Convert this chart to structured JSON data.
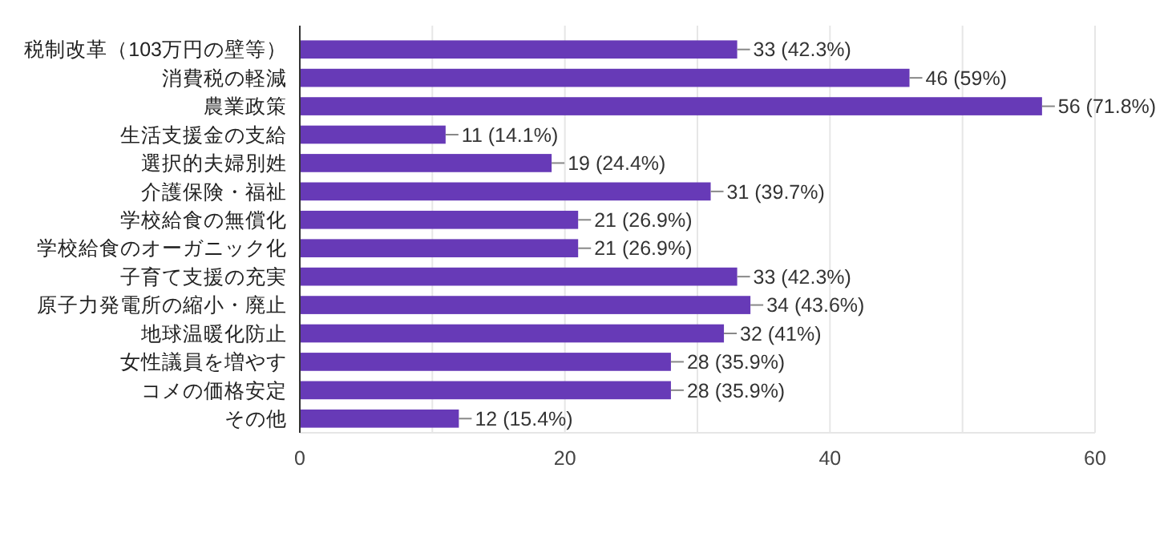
{
  "chart_data": {
    "type": "bar",
    "orientation": "horizontal",
    "categories": [
      "税制改革（103万円の壁等）",
      "消費税の軽減",
      "農業政策",
      "生活支援金の支給",
      "選択的夫婦別姓",
      "介護保険・福祉",
      "学校給食の無償化",
      "学校給食のオーガニック化",
      "子育て支援の充実",
      "原子力発電所の縮小・廃止",
      "地球温暖化防止",
      "女性議員を増やす",
      "コメの価格安定",
      "その他"
    ],
    "values": [
      33,
      46,
      56,
      11,
      19,
      31,
      21,
      21,
      33,
      34,
      32,
      28,
      28,
      12
    ],
    "value_labels": [
      "33 (42.3%)",
      "46 (59%)",
      "56 (71.8%)",
      "11 (14.1%)",
      "19 (24.4%)",
      "31 (39.7%)",
      "21 (26.9%)",
      "21 (26.9%)",
      "33 (42.3%)",
      "34 (43.6%)",
      "32 (41%)",
      "28 (35.9%)",
      "28 (35.9%)",
      "12 (15.4%)"
    ],
    "color": "#673ab7",
    "xlim": [
      0,
      60
    ],
    "xticks": [
      0,
      {
        "value": 10,
        "label": null
      },
      20,
      {
        "value": 30,
        "label": null
      },
      40,
      {
        "value": 50,
        "label": null
      },
      60
    ],
    "grid": "x"
  }
}
